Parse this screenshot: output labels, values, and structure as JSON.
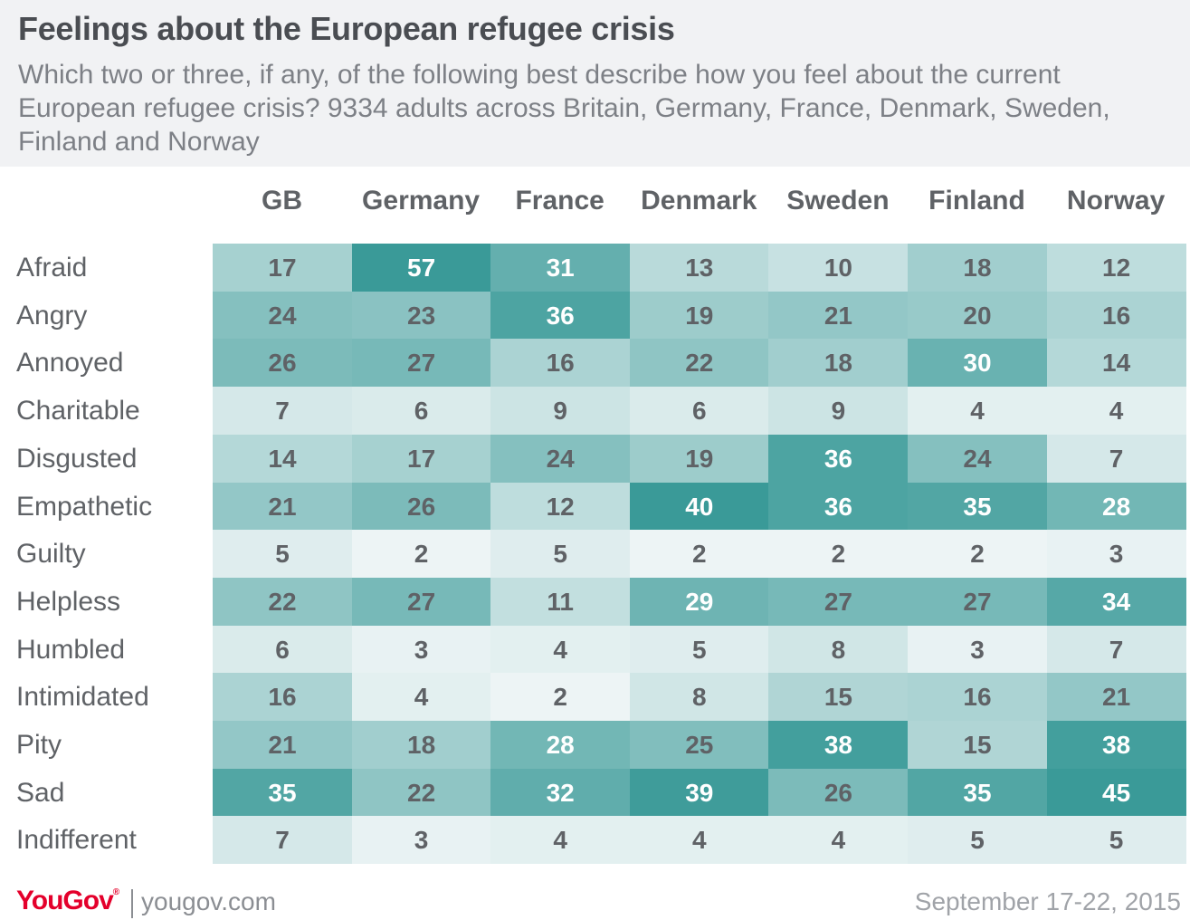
{
  "header": {
    "title": "Feelings about the European refugee crisis",
    "subtitle": "Which two or three, if any, of the following best describe how you feel about the current European refugee crisis? 9334 adults across Britain, Germany, France, Denmark, Sweden, Finland and Norway"
  },
  "chart_data": {
    "type": "heatmap",
    "columns": [
      "GB",
      "Germany",
      "France",
      "Denmark",
      "Sweden",
      "Finland",
      "Norway"
    ],
    "rows": [
      "Afraid",
      "Angry",
      "Annoyed",
      "Charitable",
      "Disgusted",
      "Empathetic",
      "Guilty",
      "Helpless",
      "Humbled",
      "Intimidated",
      "Pity",
      "Sad",
      "Indifferent"
    ],
    "values": [
      [
        17,
        57,
        31,
        13,
        10,
        18,
        12
      ],
      [
        24,
        23,
        36,
        19,
        21,
        20,
        16
      ],
      [
        26,
        27,
        16,
        22,
        18,
        30,
        14
      ],
      [
        7,
        6,
        9,
        6,
        9,
        4,
        4
      ],
      [
        14,
        17,
        24,
        19,
        36,
        24,
        7
      ],
      [
        21,
        26,
        12,
        40,
        36,
        35,
        28
      ],
      [
        5,
        2,
        5,
        2,
        2,
        2,
        3
      ],
      [
        22,
        27,
        11,
        29,
        27,
        27,
        34
      ],
      [
        6,
        3,
        4,
        5,
        8,
        3,
        7
      ],
      [
        16,
        4,
        2,
        8,
        15,
        16,
        21
      ],
      [
        21,
        18,
        28,
        25,
        38,
        15,
        38
      ],
      [
        35,
        22,
        32,
        39,
        26,
        35,
        45
      ],
      [
        7,
        3,
        4,
        4,
        4,
        5,
        5
      ]
    ],
    "color_low": "#f6f9fa",
    "color_high": "#3a9a98",
    "text_dark": "#5f6266",
    "text_light": "#ffffff"
  },
  "footer": {
    "logo": "YouGov",
    "url": "yougov.com",
    "date": "September 17-22, 2015"
  }
}
